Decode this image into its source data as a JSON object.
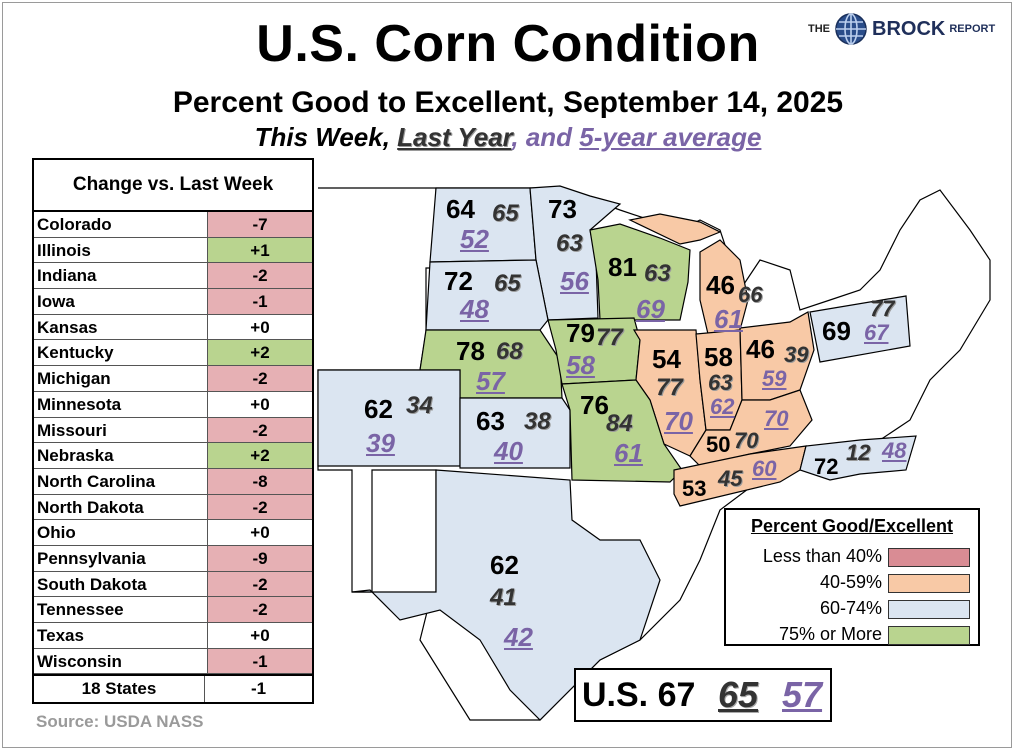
{
  "header": {
    "title": "U.S. Corn Condition",
    "subtitle": "Percent Good to Excellent, September 14, 2025",
    "key_this_week": "This Week,",
    "key_last_year": "Last Year",
    "key_and": ", and ",
    "key_avg": "5-year average"
  },
  "brand": {
    "the": "THE",
    "name": "BROCK",
    "report": "REPORT"
  },
  "change_table": {
    "header": "Change vs. Last Week",
    "rows": [
      {
        "state": "Colorado",
        "change": "-7"
      },
      {
        "state": "Illinois",
        "change": "+1"
      },
      {
        "state": "Indiana",
        "change": "-2"
      },
      {
        "state": "Iowa",
        "change": "-1"
      },
      {
        "state": "Kansas",
        "change": "+0"
      },
      {
        "state": "Kentucky",
        "change": "+2"
      },
      {
        "state": "Michigan",
        "change": "-2"
      },
      {
        "state": "Minnesota",
        "change": "+0"
      },
      {
        "state": "Missouri",
        "change": "-2"
      },
      {
        "state": "Nebraska",
        "change": "+2"
      },
      {
        "state": "North Carolina",
        "change": "-8"
      },
      {
        "state": "North Dakota",
        "change": "-2"
      },
      {
        "state": "Ohio",
        "change": "+0"
      },
      {
        "state": "Pennsylvania",
        "change": "-9"
      },
      {
        "state": "South Dakota",
        "change": "-2"
      },
      {
        "state": "Tennessee",
        "change": "-2"
      },
      {
        "state": "Texas",
        "change": "+0"
      },
      {
        "state": "Wisconsin",
        "change": "-1"
      }
    ],
    "total_label": "18 States",
    "total_change": "-1"
  },
  "source": "Source: USDA NASS",
  "legend": {
    "title": "Percent Good/Excellent",
    "items": [
      {
        "label": "Less than 40%",
        "color": "#d98c94"
      },
      {
        "label": "40-59%",
        "color": "#f8c9a6"
      },
      {
        "label": "60-74%",
        "color": "#dbe5f1"
      },
      {
        "label": "75% or More",
        "color": "#b9d48f"
      }
    ]
  },
  "us_total": {
    "label": "U.S. 67",
    "last_year": "65",
    "avg": "57"
  },
  "states": {
    "ND": {
      "tw": "64",
      "ly": "65",
      "avg": "52"
    },
    "MN": {
      "tw": "73",
      "ly": "63",
      "avg": "56"
    },
    "SD": {
      "tw": "72",
      "ly": "65",
      "avg": "48"
    },
    "WI": {
      "tw": "81",
      "ly": "63",
      "avg": "69"
    },
    "MI": {
      "tw": "46",
      "ly": "66",
      "avg": "61"
    },
    "NE": {
      "tw": "78",
      "ly": "68",
      "avg": "57"
    },
    "IA": {
      "tw": "79",
      "ly": "77",
      "avg": "58"
    },
    "IL": {
      "tw": "54",
      "ly": "77",
      "avg": "70"
    },
    "IN": {
      "tw": "58",
      "ly": "63",
      "avg": "62"
    },
    "OH": {
      "tw": "46",
      "ly": "39",
      "avg": "59"
    },
    "PA": {
      "tw": "69",
      "ly": "77",
      "avg": "67"
    },
    "CO": {
      "tw": "62",
      "ly": "34",
      "avg": "39"
    },
    "KS": {
      "tw": "63",
      "ly": "38",
      "avg": "40"
    },
    "MO": {
      "tw": "76",
      "ly": "84",
      "avg": "61"
    },
    "KY": {
      "tw": "50",
      "ly": "70",
      "avg": "70"
    },
    "TN": {
      "tw": "53",
      "ly": "45",
      "avg": "60"
    },
    "NC": {
      "tw": "72",
      "ly": "12",
      "avg": "48"
    },
    "TX": {
      "tw": "62",
      "ly": "41",
      "avg": "42"
    }
  }
}
